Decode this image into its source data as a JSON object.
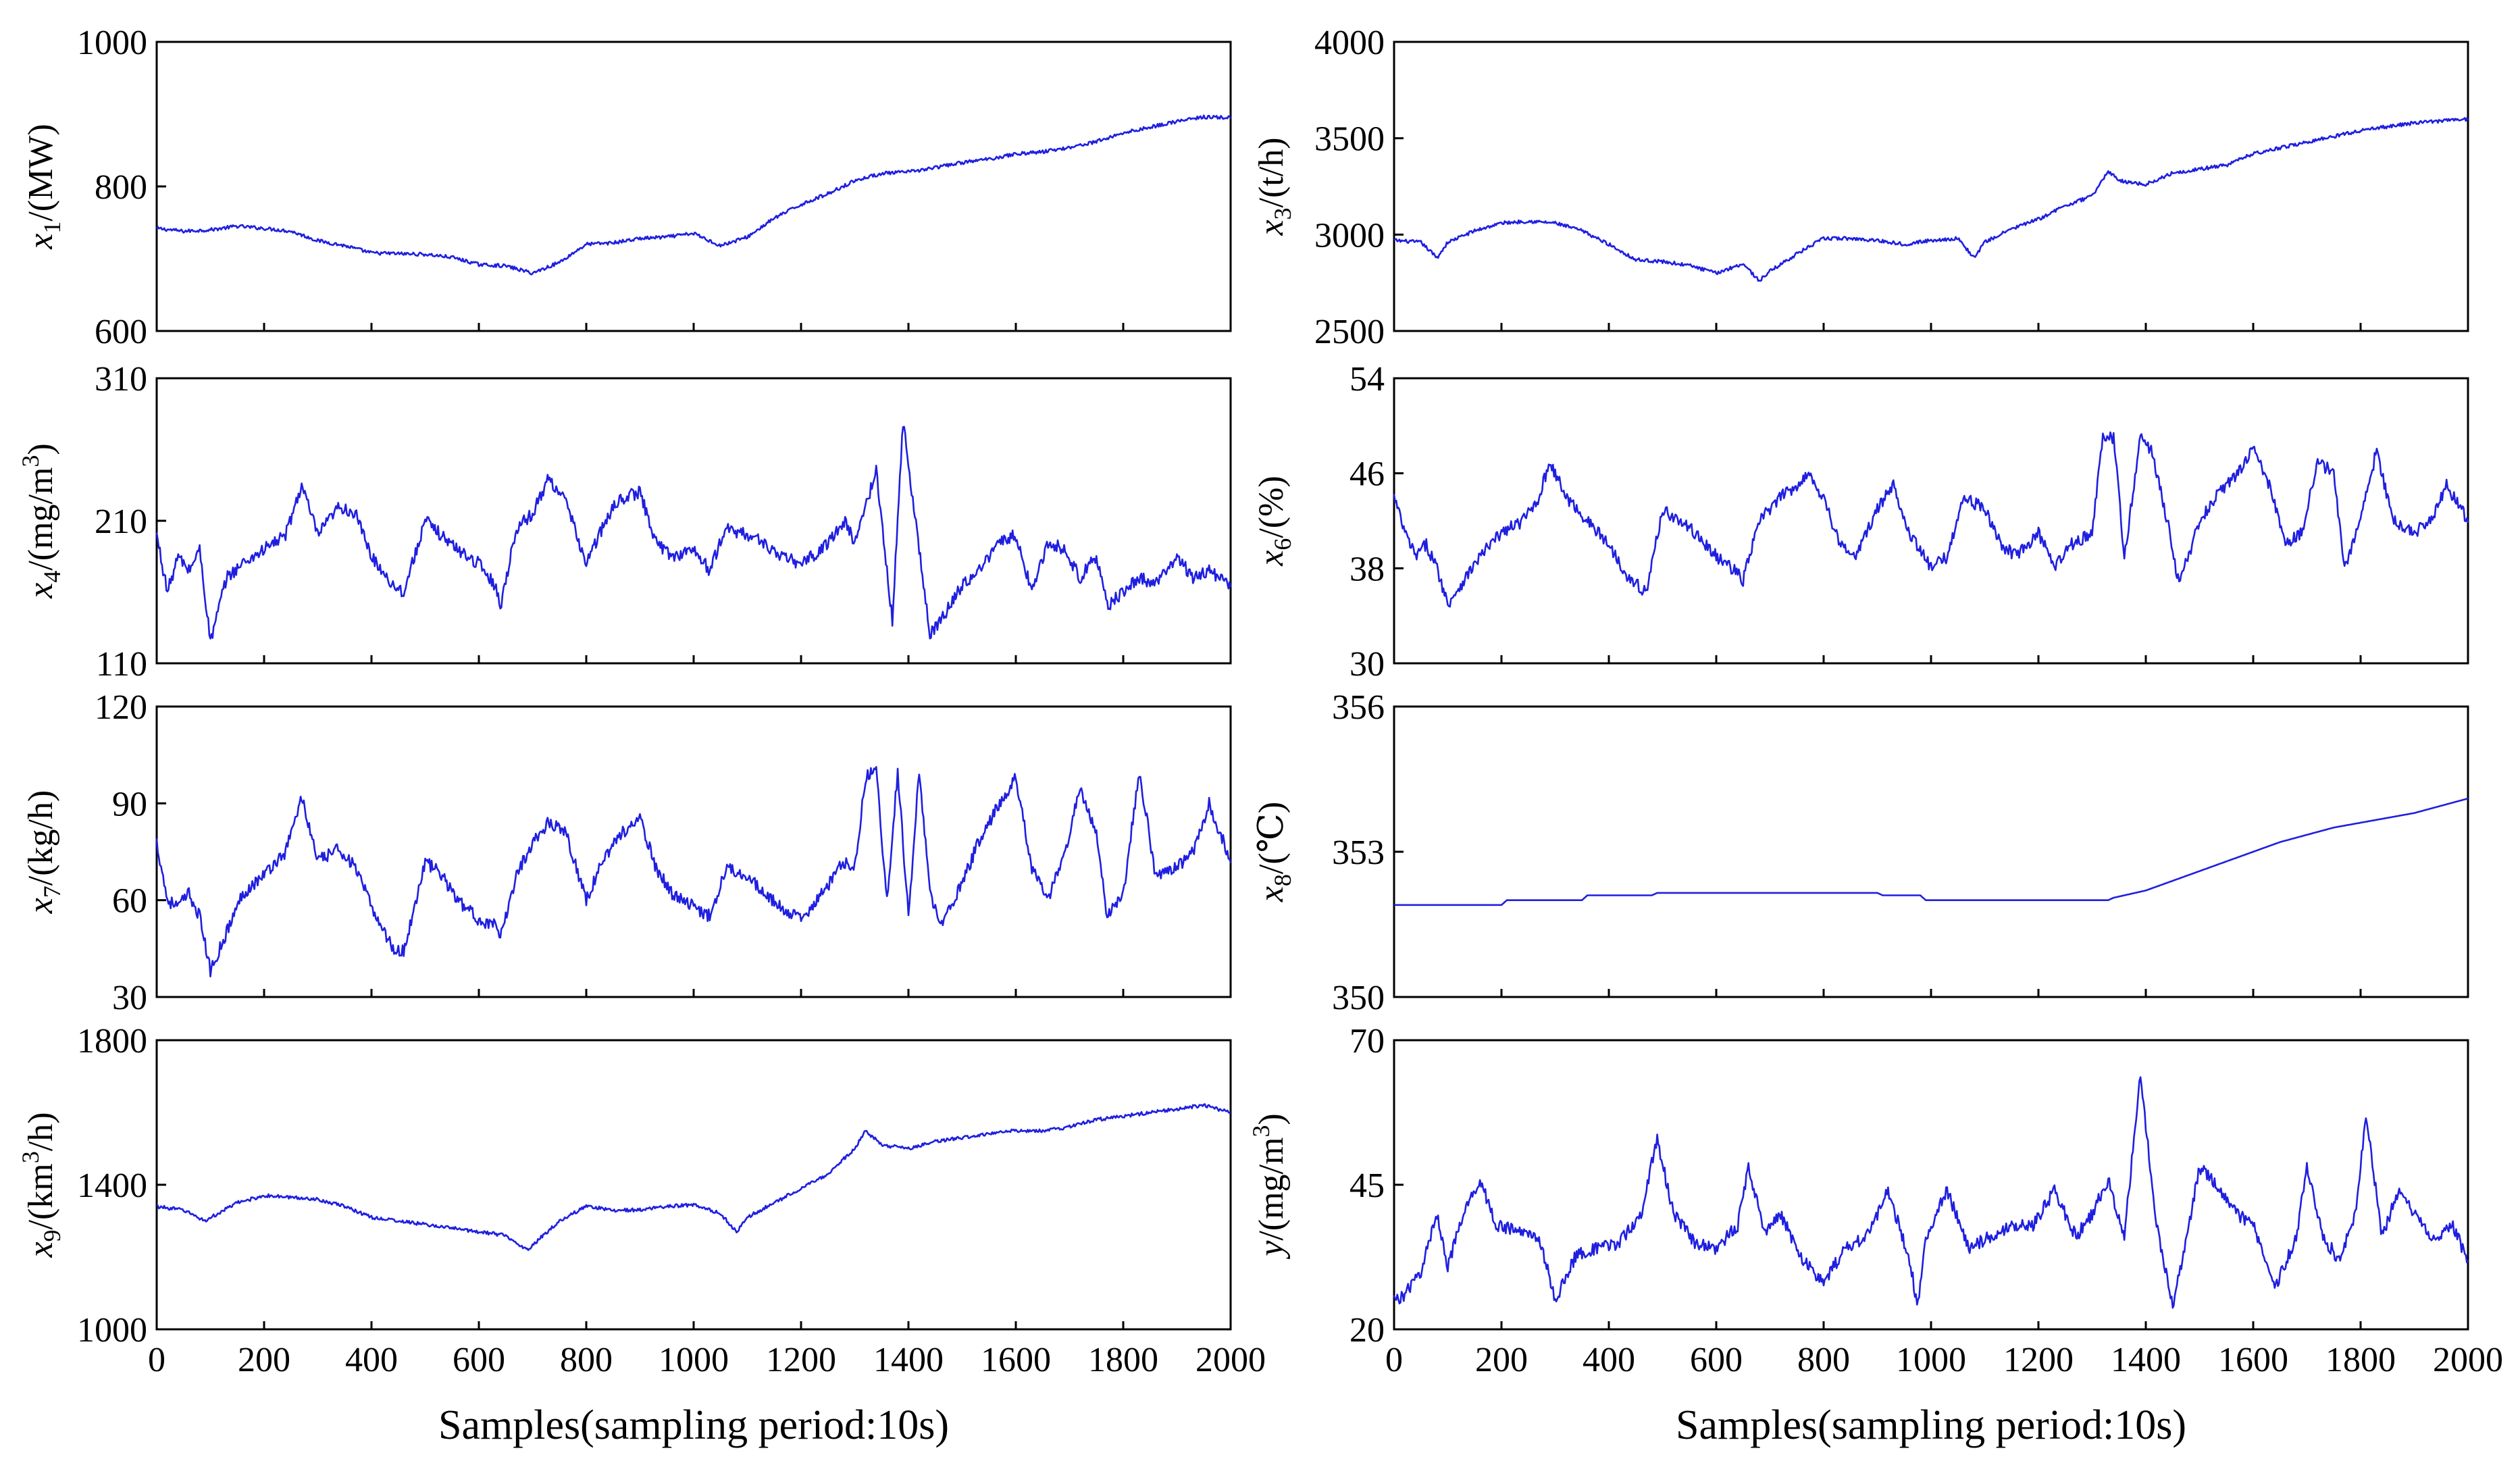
{
  "figure": {
    "series_color": "#1f1fe0",
    "xlabel": "Samples(sampling period:10s)"
  },
  "chart_data": [
    {
      "id": "x1",
      "type": "line",
      "column": "left",
      "ylabel_main": "x",
      "ylabel_sub": "1",
      "ylabel_sup": "",
      "ylabel_rest": "/(MW)",
      "xlim": [
        0,
        2000
      ],
      "ylim": [
        600,
        1000
      ],
      "xticks": [
        0,
        200,
        400,
        600,
        800,
        1000,
        1200,
        1400,
        1600,
        1800,
        2000
      ],
      "xticklabels": [
        "0",
        "200",
        "400",
        "600",
        "800",
        "1000",
        "1200",
        "1400",
        "1600",
        "1800",
        "2000"
      ],
      "show_xticklabels": false,
      "yticks": [
        600,
        800,
        1000
      ],
      "yticklabels": [
        "600",
        "800",
        "1000"
      ],
      "x": [
        0,
        50,
        100,
        150,
        200,
        250,
        300,
        350,
        400,
        450,
        500,
        550,
        600,
        650,
        700,
        750,
        800,
        850,
        900,
        950,
        1000,
        1050,
        1100,
        1150,
        1200,
        1250,
        1300,
        1350,
        1400,
        1450,
        1500,
        1550,
        1600,
        1650,
        1700,
        1750,
        1800,
        1850,
        1900,
        1950,
        2000
      ],
      "y": [
        742,
        738,
        740,
        745,
        742,
        738,
        725,
        718,
        708,
        707,
        706,
        702,
        692,
        690,
        680,
        695,
        720,
        722,
        728,
        730,
        735,
        718,
        730,
        756,
        775,
        790,
        808,
        818,
        820,
        826,
        833,
        838,
        845,
        848,
        854,
        862,
        874,
        882,
        890,
        896,
        895
      ]
    },
    {
      "id": "x3",
      "type": "line",
      "column": "right",
      "ylabel_main": "x",
      "ylabel_sub": "3",
      "ylabel_sup": "",
      "ylabel_rest": "/(t/h)",
      "xlim": [
        0,
        2000
      ],
      "ylim": [
        2500,
        4000
      ],
      "xticks": [
        0,
        200,
        400,
        600,
        800,
        1000,
        1200,
        1400,
        1600,
        1800,
        2000
      ],
      "xticklabels": [
        "0",
        "200",
        "400",
        "600",
        "800",
        "1000",
        "1200",
        "1400",
        "1600",
        "1800",
        "2000"
      ],
      "show_xticklabels": false,
      "yticks": [
        2500,
        3000,
        3500,
        4000
      ],
      "yticklabels": [
        "2500",
        "3000",
        "3500",
        "4000"
      ],
      "x": [
        0,
        50,
        80,
        100,
        150,
        200,
        250,
        300,
        350,
        400,
        450,
        500,
        550,
        600,
        650,
        680,
        700,
        750,
        800,
        850,
        900,
        950,
        1000,
        1050,
        1080,
        1100,
        1150,
        1200,
        1250,
        1300,
        1330,
        1350,
        1400,
        1450,
        1500,
        1550,
        1600,
        1650,
        1700,
        1750,
        1800,
        1850,
        1900,
        1950,
        2000
      ],
      "y": [
        2970,
        2960,
        2880,
        2960,
        3020,
        3060,
        3070,
        3060,
        3020,
        2950,
        2870,
        2860,
        2840,
        2800,
        2850,
        2760,
        2810,
        2900,
        2980,
        2980,
        2970,
        2950,
        2970,
        2980,
        2880,
        2960,
        3030,
        3080,
        3150,
        3200,
        3330,
        3280,
        3260,
        3320,
        3340,
        3360,
        3420,
        3450,
        3480,
        3510,
        3540,
        3560,
        3580,
        3590,
        3600
      ]
    },
    {
      "id": "x4",
      "type": "line",
      "column": "left",
      "ylabel_main": "x",
      "ylabel_sub": "4",
      "ylabel_sup": "3",
      "ylabel_rest": "/(mg/m",
      "ylabel_close": ")",
      "xlim": [
        0,
        2000
      ],
      "ylim": [
        110,
        310
      ],
      "xticks": [
        0,
        200,
        400,
        600,
        800,
        1000,
        1200,
        1400,
        1600,
        1800,
        2000
      ],
      "xticklabels": [
        "0",
        "200",
        "400",
        "600",
        "800",
        "1000",
        "1200",
        "1400",
        "1600",
        "1800",
        "2000"
      ],
      "show_xticklabels": false,
      "yticks": [
        110,
        210,
        310
      ],
      "yticklabels": [
        "110",
        "210",
        "310"
      ],
      "x": [
        0,
        20,
        40,
        60,
        80,
        100,
        130,
        160,
        200,
        240,
        270,
        300,
        340,
        370,
        400,
        440,
        460,
        500,
        530,
        560,
        600,
        630,
        640,
        670,
        700,
        730,
        760,
        800,
        830,
        860,
        900,
        930,
        960,
        1000,
        1030,
        1060,
        1100,
        1130,
        1160,
        1200,
        1240,
        1280,
        1300,
        1340,
        1370,
        1390,
        1410,
        1440,
        1460,
        1500,
        1530,
        1570,
        1600,
        1630,
        1660,
        1690,
        1720,
        1750,
        1770,
        1800,
        1830,
        1860,
        1900,
        1930,
        1960,
        2000
      ],
      "y": [
        200,
        160,
        185,
        175,
        190,
        125,
        170,
        180,
        190,
        200,
        235,
        200,
        220,
        215,
        185,
        165,
        160,
        210,
        200,
        190,
        180,
        165,
        150,
        205,
        215,
        240,
        225,
        180,
        205,
        225,
        230,
        195,
        185,
        190,
        175,
        205,
        200,
        195,
        185,
        180,
        190,
        210,
        195,
        245,
        140,
        280,
        220,
        130,
        140,
        165,
        175,
        195,
        200,
        160,
        195,
        190,
        170,
        185,
        150,
        160,
        170,
        165,
        185,
        170,
        175,
        165
      ]
    },
    {
      "id": "x6",
      "type": "line",
      "column": "right",
      "ylabel_main": "x",
      "ylabel_sub": "6",
      "ylabel_sup": "",
      "ylabel_rest": "/(%)",
      "xlim": [
        0,
        2000
      ],
      "ylim": [
        30,
        54
      ],
      "xticks": [
        0,
        200,
        400,
        600,
        800,
        1000,
        1200,
        1400,
        1600,
        1800,
        2000
      ],
      "xticklabels": [
        "0",
        "200",
        "400",
        "600",
        "800",
        "1000",
        "1200",
        "1400",
        "1600",
        "1800",
        "2000"
      ],
      "show_xticklabels": false,
      "yticks": [
        30,
        38,
        46,
        54
      ],
      "yticklabels": [
        "30",
        "38",
        "46",
        "54"
      ],
      "x": [
        0,
        20,
        40,
        60,
        80,
        100,
        130,
        160,
        200,
        240,
        270,
        290,
        320,
        360,
        400,
        440,
        470,
        500,
        530,
        560,
        600,
        630,
        650,
        680,
        720,
        750,
        770,
        800,
        830,
        860,
        900,
        930,
        960,
        1000,
        1030,
        1060,
        1100,
        1130,
        1160,
        1200,
        1230,
        1260,
        1300,
        1320,
        1340,
        1360,
        1390,
        1410,
        1440,
        1460,
        1480,
        1500,
        1530,
        1570,
        1600,
        1630,
        1660,
        1690,
        1720,
        1750,
        1770,
        1800,
        1830,
        1860,
        1900,
        1930,
        1960,
        2000
      ],
      "y": [
        44,
        41,
        39,
        40,
        38,
        35,
        37,
        39,
        41,
        42,
        44,
        47,
        44,
        42,
        40,
        37,
        36,
        43,
        42,
        41,
        39,
        38,
        37,
        42,
        44,
        45,
        46,
        44,
        40,
        39,
        43,
        45,
        41,
        38,
        39,
        44,
        43,
        40,
        39,
        41,
        38,
        40,
        41,
        49,
        49,
        39,
        49,
        48,
        42,
        37,
        39,
        42,
        44,
        46,
        48,
        45,
        40,
        41,
        47,
        46,
        38,
        42,
        48,
        42,
        41,
        42,
        45,
        42
      ]
    },
    {
      "id": "x7",
      "type": "line",
      "column": "left",
      "ylabel_main": "x",
      "ylabel_sub": "7",
      "ylabel_sup": "",
      "ylabel_rest": "/(kg/h)",
      "xlim": [
        0,
        2000
      ],
      "ylim": [
        30,
        120
      ],
      "xticks": [
        0,
        200,
        400,
        600,
        800,
        1000,
        1200,
        1400,
        1600,
        1800,
        2000
      ],
      "xticklabels": [
        "0",
        "200",
        "400",
        "600",
        "800",
        "1000",
        "1200",
        "1400",
        "1600",
        "1800",
        "2000"
      ],
      "show_xticklabels": false,
      "yticks": [
        30,
        60,
        90,
        120
      ],
      "yticklabels": [
        "30",
        "60",
        "90",
        "120"
      ],
      "x": [
        0,
        20,
        40,
        60,
        80,
        100,
        130,
        160,
        200,
        240,
        270,
        300,
        340,
        370,
        400,
        440,
        460,
        500,
        530,
        560,
        600,
        630,
        640,
        670,
        700,
        730,
        760,
        800,
        830,
        860,
        900,
        930,
        960,
        1000,
        1030,
        1060,
        1100,
        1130,
        1160,
        1200,
        1240,
        1280,
        1300,
        1320,
        1340,
        1360,
        1380,
        1400,
        1420,
        1440,
        1460,
        1500,
        1530,
        1570,
        1600,
        1630,
        1660,
        1690,
        1720,
        1750,
        1770,
        1800,
        1830,
        1860,
        1900,
        1930,
        1960,
        2000
      ],
      "y": [
        78,
        60,
        58,
        62,
        55,
        38,
        50,
        62,
        68,
        75,
        92,
        72,
        76,
        70,
        58,
        45,
        44,
        72,
        68,
        60,
        54,
        52,
        48,
        68,
        78,
        84,
        82,
        60,
        72,
        80,
        85,
        70,
        62,
        58,
        55,
        70,
        68,
        62,
        58,
        54,
        62,
        72,
        70,
        98,
        100,
        60,
        100,
        55,
        100,
        62,
        52,
        65,
        78,
        90,
        98,
        70,
        60,
        74,
        95,
        80,
        55,
        62,
        100,
        68,
        70,
        75,
        90,
        72
      ]
    },
    {
      "id": "x8",
      "type": "line",
      "column": "right",
      "ylabel_main": "x",
      "ylabel_sub": "8",
      "ylabel_sup": "",
      "ylabel_rest": "/(℃)",
      "xlim": [
        0,
        2000
      ],
      "ylim": [
        350,
        356
      ],
      "xticks": [
        0,
        200,
        400,
        600,
        800,
        1000,
        1200,
        1400,
        1600,
        1800,
        2000
      ],
      "xticklabels": [
        "0",
        "200",
        "400",
        "600",
        "800",
        "1000",
        "1200",
        "1400",
        "1600",
        "1800",
        "2000"
      ],
      "show_xticklabels": false,
      "yticks": [
        350,
        353,
        356
      ],
      "yticklabels": [
        "350",
        "353",
        "356"
      ],
      "x": [
        0,
        200,
        210,
        350,
        360,
        480,
        490,
        900,
        910,
        980,
        990,
        1330,
        1340,
        1400,
        1450,
        1500,
        1550,
        1600,
        1650,
        1700,
        1750,
        1800,
        1850,
        1900,
        1950,
        2000
      ],
      "y": [
        351.9,
        351.9,
        352.0,
        352.0,
        352.1,
        352.1,
        352.15,
        352.15,
        352.1,
        352.1,
        352.0,
        352.0,
        352.05,
        352.2,
        352.4,
        352.6,
        352.8,
        353.0,
        353.2,
        353.35,
        353.5,
        353.6,
        353.7,
        353.8,
        353.95,
        354.1
      ]
    },
    {
      "id": "x9",
      "type": "line",
      "column": "left",
      "ylabel_main": "x",
      "ylabel_sub": "9",
      "ylabel_sup": "3",
      "ylabel_rest": "/(km",
      "ylabel_close": "/h)",
      "xlim": [
        0,
        2000
      ],
      "ylim": [
        1000,
        1800
      ],
      "xticks": [
        0,
        200,
        400,
        600,
        800,
        1000,
        1200,
        1400,
        1600,
        1800,
        2000
      ],
      "xticklabels": [
        "0",
        "200",
        "400",
        "600",
        "800",
        "1000",
        "1200",
        "1400",
        "1600",
        "1800",
        "2000"
      ],
      "show_xticklabels": true,
      "yticks": [
        1000,
        1400,
        1800
      ],
      "yticklabels": [
        "1000",
        "1400",
        "1800"
      ],
      "x": [
        0,
        50,
        90,
        150,
        200,
        250,
        300,
        350,
        400,
        450,
        500,
        550,
        600,
        650,
        690,
        750,
        800,
        850,
        900,
        950,
        1000,
        1050,
        1080,
        1100,
        1150,
        1200,
        1250,
        1300,
        1320,
        1350,
        1400,
        1450,
        1500,
        1550,
        1600,
        1650,
        1700,
        1750,
        1800,
        1850,
        1900,
        1950,
        2000
      ],
      "y": [
        1340,
        1330,
        1300,
        1350,
        1370,
        1365,
        1360,
        1340,
        1310,
        1300,
        1290,
        1280,
        1270,
        1260,
        1220,
        1300,
        1340,
        1330,
        1330,
        1340,
        1345,
        1320,
        1270,
        1310,
        1350,
        1390,
        1430,
        1500,
        1550,
        1510,
        1500,
        1520,
        1530,
        1540,
        1550,
        1550,
        1560,
        1580,
        1590,
        1600,
        1610,
        1620,
        1600
      ]
    },
    {
      "id": "y",
      "type": "line",
      "column": "right",
      "ylabel_main": "y",
      "ylabel_sub": "",
      "ylabel_sup": "3",
      "ylabel_rest": "/(mg/m",
      "ylabel_close": ")",
      "xlim": [
        0,
        2000
      ],
      "ylim": [
        20,
        70
      ],
      "xticks": [
        0,
        200,
        400,
        600,
        800,
        1000,
        1200,
        1400,
        1600,
        1800,
        2000
      ],
      "xticklabels": [
        "0",
        "200",
        "400",
        "600",
        "800",
        "1000",
        "1200",
        "1400",
        "1600",
        "1800",
        "2000"
      ],
      "show_xticklabels": true,
      "yticks": [
        20,
        45,
        70
      ],
      "yticklabels": [
        "20",
        "45",
        "70"
      ],
      "x": [
        0,
        20,
        50,
        80,
        100,
        130,
        160,
        190,
        230,
        270,
        300,
        340,
        380,
        420,
        460,
        490,
        520,
        560,
        600,
        640,
        660,
        690,
        720,
        760,
        800,
        840,
        880,
        920,
        960,
        975,
        990,
        1030,
        1070,
        1110,
        1150,
        1190,
        1230,
        1270,
        1300,
        1330,
        1360,
        1390,
        1420,
        1450,
        1480,
        1500,
        1530,
        1570,
        1600,
        1640,
        1680,
        1700,
        1730,
        1760,
        1790,
        1810,
        1840,
        1870,
        1900,
        1940,
        1970,
        2000
      ],
      "y": [
        25,
        26,
        30,
        40,
        31,
        40,
        46,
        38,
        37,
        36,
        25,
        33,
        34,
        35,
        40,
        53,
        40,
        35,
        34,
        38,
        48,
        37,
        40,
        32,
        28,
        34,
        36,
        44,
        32,
        24,
        36,
        44,
        34,
        36,
        38,
        38,
        44,
        36,
        40,
        46,
        36,
        64,
        38,
        24,
        38,
        48,
        45,
        40,
        38,
        27,
        36,
        48,
        36,
        32,
        40,
        57,
        36,
        44,
        40,
        35,
        38,
        32
      ]
    }
  ]
}
